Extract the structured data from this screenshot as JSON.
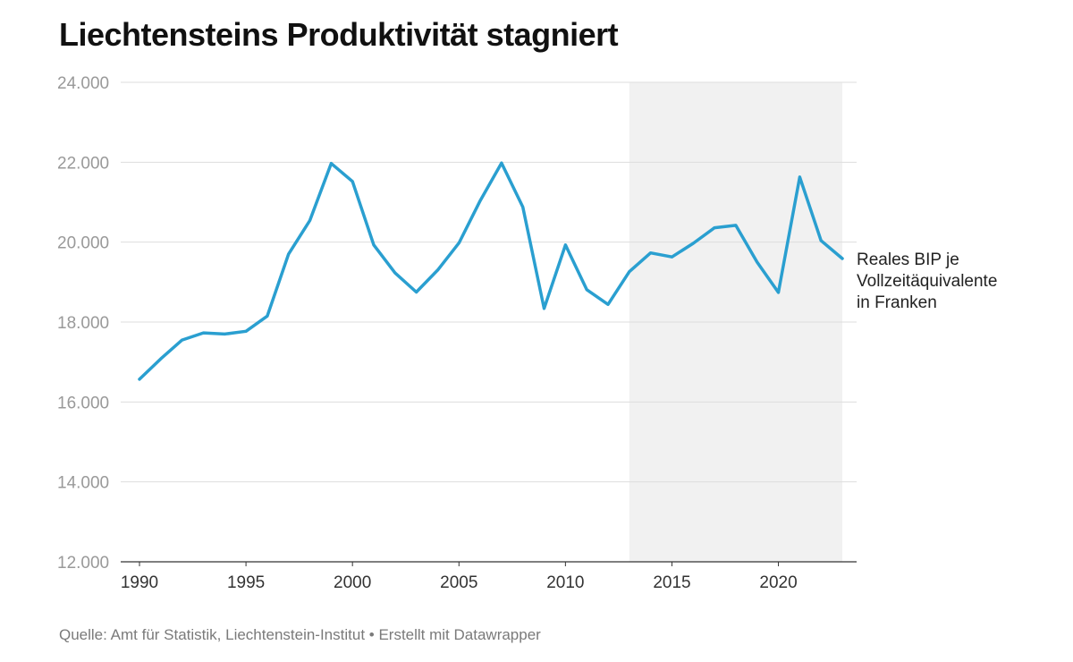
{
  "chart_data": {
    "type": "line",
    "title": "Liechtensteins Produktivität stagniert",
    "source": "Quelle: Amt für Statistik, Liechtenstein-Institut • Erstellt mit Datawrapper",
    "series_label_lines": [
      "Reales BIP je",
      "Vollzeitäquivalente",
      "in Franken"
    ],
    "ylim": [
      12000,
      24000
    ],
    "xlim": [
      1990,
      2023
    ],
    "y_ticks": [
      {
        "value": 12000,
        "label": "12.000"
      },
      {
        "value": 14000,
        "label": "14.000"
      },
      {
        "value": 16000,
        "label": "16.000"
      },
      {
        "value": 18000,
        "label": "18.000"
      },
      {
        "value": 20000,
        "label": "20.000"
      },
      {
        "value": 22000,
        "label": "22.000"
      },
      {
        "value": 24000,
        "label": "24.000"
      }
    ],
    "x_ticks": [
      {
        "value": 1990,
        "label": "1990"
      },
      {
        "value": 1995,
        "label": "1995"
      },
      {
        "value": 2000,
        "label": "2000"
      },
      {
        "value": 2005,
        "label": "2005"
      },
      {
        "value": 2010,
        "label": "2010"
      },
      {
        "value": 2015,
        "label": "2015"
      },
      {
        "value": 2020,
        "label": "2020"
      }
    ],
    "shaded_range": [
      2013,
      2023
    ],
    "grid": true,
    "line_color": "#2a9fd0",
    "shade_color": "#f1f1f1",
    "x": [
      1990,
      1991,
      1992,
      1993,
      1994,
      1995,
      1996,
      1997,
      1998,
      1999,
      2000,
      2001,
      2002,
      2003,
      2004,
      2005,
      2006,
      2007,
      2008,
      2009,
      2010,
      2011,
      2012,
      2013,
      2014,
      2015,
      2016,
      2017,
      2018,
      2019,
      2020,
      2021,
      2022,
      2023
    ],
    "values": [
      16570,
      17080,
      17550,
      17730,
      17700,
      17770,
      18150,
      19700,
      20540,
      21970,
      21520,
      19930,
      19230,
      18750,
      19300,
      19980,
      21040,
      21980,
      20880,
      18340,
      19930,
      18810,
      18440,
      19260,
      19730,
      19630,
      19970,
      20360,
      20420,
      19500,
      18740,
      21630,
      20040,
      19590
    ]
  }
}
